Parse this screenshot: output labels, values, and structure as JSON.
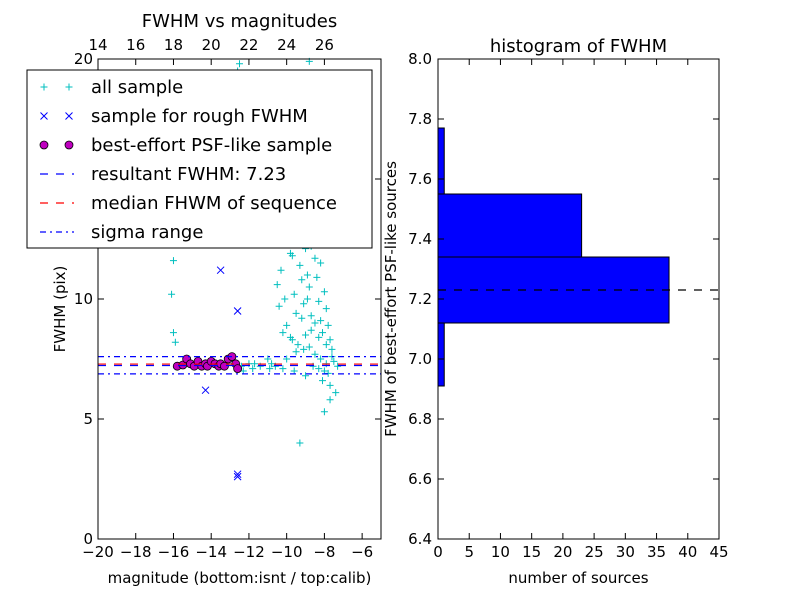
{
  "chart_data": [
    {
      "type": "scatter",
      "title": "FWHM vs magnitudes",
      "xlabel": "magnitude (bottom:isnt / top:calib)",
      "ylabel": "FWHM (pix)",
      "xlim": [
        -20,
        -5
      ],
      "ylim": [
        0,
        20
      ],
      "x_ticks": [
        -20,
        -18,
        -16,
        -14,
        -12,
        -10,
        -8,
        -6
      ],
      "x_tick_labels": [
        "−20",
        "−18",
        "−16",
        "−14",
        "−12",
        "−10",
        "−8",
        "−6"
      ],
      "y_ticks": [
        0,
        5,
        10,
        15,
        20
      ],
      "y_tick_labels": [
        "0",
        "5",
        "10",
        "15",
        "20"
      ],
      "top_ticks": [
        14,
        16,
        18,
        20,
        22,
        24,
        26
      ],
      "top_tick_labels": [
        "14",
        "16",
        "18",
        "20",
        "22",
        "24",
        "26"
      ],
      "top_axis_offset": 34,
      "legend": {
        "placement": "top-left",
        "entries": [
          {
            "name": "all sample",
            "marker": "plus",
            "color": "#00BFBF"
          },
          {
            "name": "sample for rough FWHM",
            "marker": "x",
            "color": "#0000FF"
          },
          {
            "name": "best-effort PSF-like sample",
            "marker": "circle",
            "color": "#BF00BF"
          },
          {
            "name": "resultant FWHM: 7.23",
            "marker": "dashed",
            "color": "#0000FF"
          },
          {
            "name": "median FHWM of sequence",
            "marker": "dashed",
            "color": "#FF0000"
          },
          {
            "name": "sigma range",
            "marker": "dashdot",
            "color": "#0000FF"
          }
        ]
      },
      "series": [
        {
          "name": "all sample",
          "color": "#00BFBF",
          "points": [
            [
              -12.6,
              19.5
            ],
            [
              -8.8,
              19.9
            ],
            [
              -12.5,
              19.8
            ],
            [
              -16.0,
              11.6
            ],
            [
              -16.1,
              10.2
            ],
            [
              -16.0,
              8.6
            ],
            [
              -15.9,
              8.2
            ],
            [
              -15.3,
              7.3
            ],
            [
              -14.9,
              7.2
            ],
            [
              -14.0,
              7.4
            ],
            [
              -13.6,
              7.2
            ],
            [
              -13.1,
              7.3
            ],
            [
              -12.8,
              7.4
            ],
            [
              -12.4,
              7.2
            ],
            [
              -12.0,
              7.3
            ],
            [
              -11.4,
              7.2
            ],
            [
              -11.0,
              7.5
            ],
            [
              -10.6,
              7.2
            ],
            [
              -10.8,
              7.3
            ],
            [
              -11.8,
              7.1
            ],
            [
              -10.4,
              9.7
            ],
            [
              -10.2,
              8.6
            ],
            [
              -10.0,
              8.9
            ],
            [
              -9.8,
              8.4
            ],
            [
              -10.5,
              10.6
            ],
            [
              -10.3,
              11.2
            ],
            [
              -10.1,
              12.4
            ],
            [
              -9.9,
              12.9
            ],
            [
              -9.7,
              11.8
            ],
            [
              -9.6,
              10.2
            ],
            [
              -9.5,
              9.4
            ],
            [
              -9.4,
              12.6
            ],
            [
              -9.3,
              11.4
            ],
            [
              -9.2,
              10.8
            ],
            [
              -9.1,
              9.8
            ],
            [
              -9.0,
              12.1
            ],
            [
              -8.9,
              11.0
            ],
            [
              -8.8,
              10.5
            ],
            [
              -8.7,
              9.3
            ],
            [
              -8.6,
              12.8
            ],
            [
              -8.5,
              11.7
            ],
            [
              -8.4,
              10.9
            ],
            [
              -8.3,
              9.9
            ],
            [
              -8.2,
              9.1
            ],
            [
              -8.1,
              8.6
            ],
            [
              -8.0,
              10.3
            ],
            [
              -7.9,
              9.6
            ],
            [
              -7.8,
              8.9
            ],
            [
              -7.7,
              8.3
            ],
            [
              -7.6,
              7.9
            ],
            [
              -7.5,
              7.4
            ],
            [
              -9.4,
              8.1
            ],
            [
              -9.1,
              7.9
            ],
            [
              -8.8,
              8.0
            ],
            [
              -8.5,
              7.7
            ],
            [
              -8.2,
              7.5
            ],
            [
              -7.9,
              7.3
            ],
            [
              -8.6,
              7.2
            ],
            [
              -8.3,
              7.1
            ],
            [
              -8.0,
              7.0
            ],
            [
              -7.8,
              6.9
            ],
            [
              -8.1,
              6.6
            ],
            [
              -7.7,
              6.4
            ],
            [
              -7.4,
              6.1
            ],
            [
              -7.7,
              5.8
            ],
            [
              -8.0,
              5.3
            ],
            [
              -9.3,
              4.0
            ],
            [
              -9.0,
              6.8
            ],
            [
              -9.6,
              7.0
            ],
            [
              -10.2,
              7.1
            ],
            [
              -10.9,
              7.1
            ],
            [
              -11.7,
              7.3
            ],
            [
              -12.3,
              7.0
            ],
            [
              -8.4,
              13.0
            ],
            [
              -8.7,
              12.2
            ],
            [
              -9.8,
              11.9
            ],
            [
              -10.1,
              10.0
            ],
            [
              -8.9,
              10.0
            ],
            [
              -8.2,
              11.5
            ],
            [
              -8.0,
              12.6
            ],
            [
              -8.5,
              9.0
            ],
            [
              -9.2,
              9.2
            ],
            [
              -9.7,
              8.3
            ],
            [
              -8.3,
              8.4
            ],
            [
              -7.9,
              8.1
            ],
            [
              -7.6,
              7.6
            ],
            [
              -8.7,
              8.7
            ],
            [
              -9.0,
              8.5
            ],
            [
              -9.5,
              7.8
            ],
            [
              -10.0,
              7.5
            ],
            [
              -7.3,
              7.2
            ]
          ]
        },
        {
          "name": "sample for rough FWHM",
          "color": "#0000FF",
          "points": [
            [
              -13.5,
              11.2
            ],
            [
              -12.6,
              9.5
            ],
            [
              -14.3,
              6.2
            ],
            [
              -12.6,
              2.7
            ],
            [
              -12.6,
              2.6
            ]
          ]
        },
        {
          "name": "best-effort PSF-like sample",
          "color": "#BF00BF",
          "points": [
            [
              -15.8,
              7.2
            ],
            [
              -15.5,
              7.25
            ],
            [
              -15.3,
              7.5
            ],
            [
              -15.1,
              7.3
            ],
            [
              -14.9,
              7.2
            ],
            [
              -14.7,
              7.4
            ],
            [
              -14.5,
              7.2
            ],
            [
              -14.3,
              7.3
            ],
            [
              -14.2,
              7.2
            ],
            [
              -14.0,
              7.4
            ],
            [
              -13.8,
              7.3
            ],
            [
              -13.6,
              7.2
            ],
            [
              -13.5,
              7.3
            ],
            [
              -13.3,
              7.2
            ],
            [
              -13.1,
              7.5
            ],
            [
              -12.9,
              7.6
            ],
            [
              -12.7,
              7.3
            ],
            [
              -12.6,
              7.1
            ]
          ]
        }
      ],
      "hlines": [
        {
          "name": "resultant FWHM: 7.23",
          "y": 7.23,
          "color": "#0000FF",
          "style": "dashed"
        },
        {
          "name": "median FHWM of sequence",
          "y": 7.29,
          "color": "#FF0000",
          "style": "dashed"
        },
        {
          "name": "sigma range",
          "y": 7.6,
          "color": "#0000FF",
          "style": "dashdot"
        },
        {
          "name": "sigma range",
          "y": 6.88,
          "color": "#0000FF",
          "style": "dashdot"
        }
      ]
    },
    {
      "type": "bar",
      "orientation": "horizontal",
      "title": "histogram of FWHM",
      "xlabel": "number of sources",
      "ylabel": "FWHM of best-effort PSF-like sources",
      "xlim": [
        0,
        45
      ],
      "ylim": [
        6.4,
        8.0
      ],
      "x_ticks": [
        0,
        5,
        10,
        15,
        20,
        25,
        30,
        35,
        40,
        45
      ],
      "x_tick_labels": [
        "0",
        "5",
        "10",
        "15",
        "20",
        "25",
        "30",
        "35",
        "40",
        "45"
      ],
      "y_ticks": [
        6.4,
        6.6,
        6.8,
        7.0,
        7.2,
        7.4,
        7.6,
        7.8,
        8.0
      ],
      "y_tick_labels": [
        "6.4",
        "6.6",
        "6.8",
        "7.0",
        "7.2",
        "7.4",
        "7.6",
        "7.8",
        "8.0"
      ],
      "bar_color": "#0000FF",
      "bins": [
        {
          "from": 6.91,
          "to": 7.12,
          "count": 1
        },
        {
          "from": 7.12,
          "to": 7.34,
          "count": 37
        },
        {
          "from": 7.34,
          "to": 7.55,
          "count": 23
        },
        {
          "from": 7.55,
          "to": 7.77,
          "count": 1
        }
      ],
      "hline": {
        "y": 7.23,
        "color": "#000000",
        "style": "dashed"
      }
    }
  ]
}
